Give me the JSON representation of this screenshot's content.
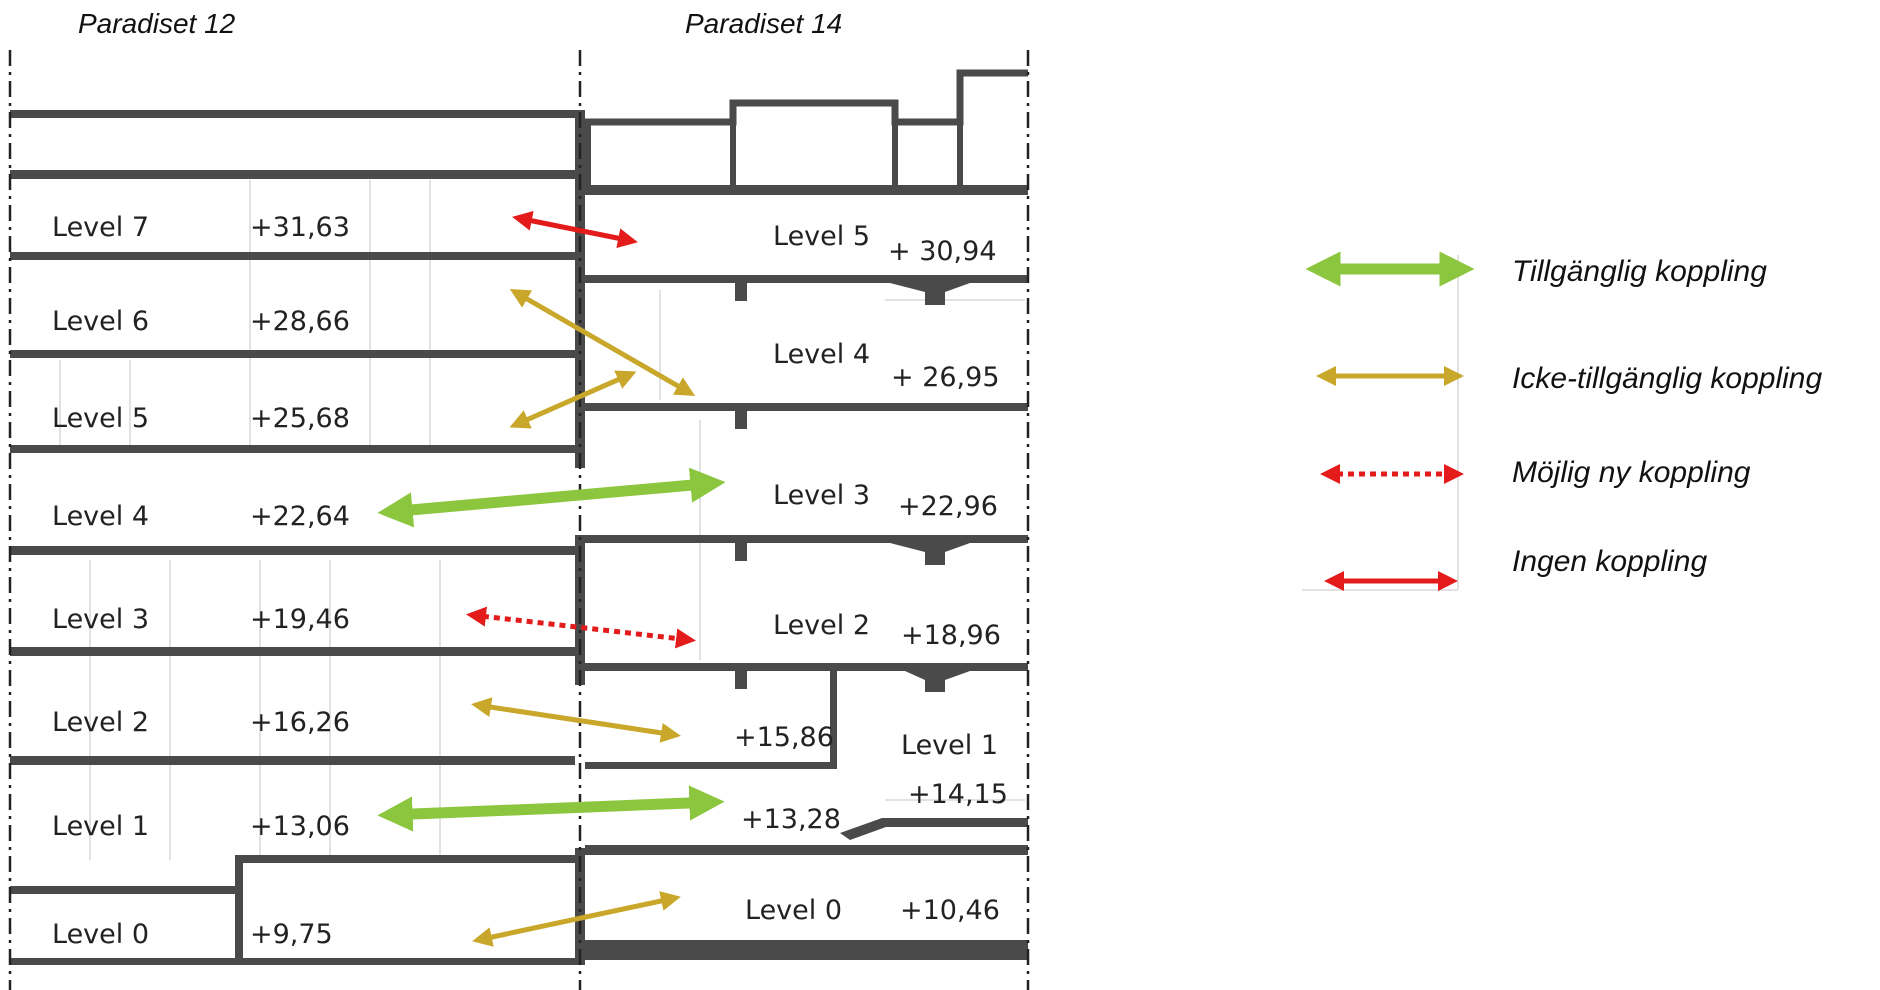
{
  "buildings": {
    "left": "Paradiset 12",
    "right": "Paradiset 14"
  },
  "left_levels": [
    {
      "name": "Level 7",
      "elev": "+31,63"
    },
    {
      "name": "Level 6",
      "elev": "+28,66"
    },
    {
      "name": "Level 5",
      "elev": "+25,68"
    },
    {
      "name": "Level 4",
      "elev": "+22,64"
    },
    {
      "name": "Level 3",
      "elev": "+19,46"
    },
    {
      "name": "Level 2",
      "elev": "+16,26"
    },
    {
      "name": "Level 1",
      "elev": "+13,06"
    },
    {
      "name": "Level 0",
      "elev": "+9,75"
    }
  ],
  "right_levels": [
    {
      "name": "Level 5",
      "elev": "+ 30,94"
    },
    {
      "name": "Level 4",
      "elev": "+ 26,95"
    },
    {
      "name": "Level 3",
      "elev": "+22,96"
    },
    {
      "name": "Level 2",
      "elev": "+18,96"
    },
    {
      "name": "Level 1",
      "elev": "+14,15"
    },
    {
      "name": "Level 0",
      "elev": "+10,46"
    }
  ],
  "right_extra_elevations": {
    "upper": "+15,86",
    "lower": "+13,28"
  },
  "connection_types": {
    "accessible": {
      "label": "Tillgänglig koppling",
      "color": "#8cc63f"
    },
    "non_accessible": {
      "label": "Icke-tillgänglig koppling",
      "color": "#c8a72a"
    },
    "possible_new": {
      "label": "Möjlig ny koppling",
      "color": "#e31b1b"
    },
    "none": {
      "label": "Ingen koppling",
      "color": "#e31b1b"
    }
  },
  "connections": [
    {
      "from": "Level 7",
      "to": "Level 5",
      "type": "none"
    },
    {
      "from": "Level 6",
      "to": "Level 4",
      "type": "non_accessible"
    },
    {
      "from": "Level 5",
      "to": "Level 4",
      "type": "non_accessible"
    },
    {
      "from": "Level 4",
      "to": "Level 3",
      "type": "accessible"
    },
    {
      "from": "Level 3",
      "to": "Level 2",
      "type": "possible_new"
    },
    {
      "from": "Level 2",
      "to": "+15,86",
      "type": "non_accessible"
    },
    {
      "from": "Level 1",
      "to": "+13,28",
      "type": "accessible"
    },
    {
      "from": "Level 0",
      "to": "Level 0",
      "type": "non_accessible"
    }
  ]
}
